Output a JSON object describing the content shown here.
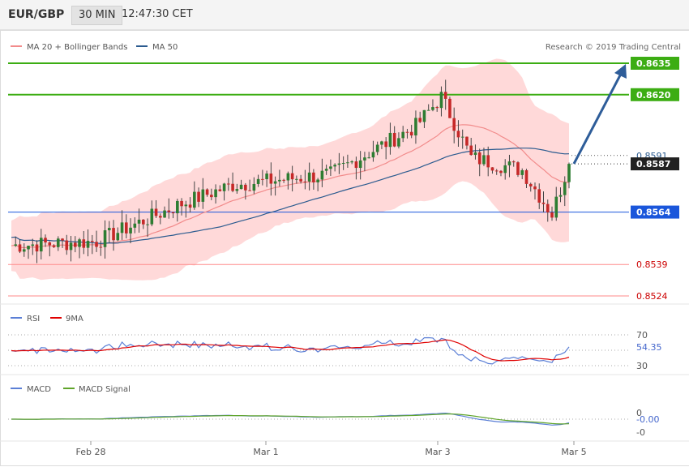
{
  "header": {
    "symbol": "EUR/GBP",
    "timeframe": "30 MIN",
    "time": "12:47:30 CET"
  },
  "legend": {
    "ma20_label": "MA 20 + Bollinger Bands",
    "ma50_label": "MA 50",
    "credit": "Research © 2019 Trading Central"
  },
  "colors": {
    "up": "#2e7d32",
    "down": "#c62828",
    "band": "#ffd2d2",
    "ma20": "#f28b8b",
    "ma50": "#2b5b8f",
    "target": "#3cad13",
    "support": "#1a56db",
    "resist": "#ff8a8a",
    "arrow": "#2e5d99",
    "rsi": "#5b7fd6",
    "rsi_ma": "#e00000",
    "macd": "#5b7fd6",
    "macd_signal": "#5fa42a"
  },
  "price_levels": [
    {
      "value": "0.8635",
      "kind": "target"
    },
    {
      "value": "0.8620",
      "kind": "target"
    },
    {
      "value": "0.8591",
      "kind": "text"
    },
    {
      "value": "0.8587",
      "kind": "last"
    },
    {
      "value": "0.8564",
      "kind": "pivot"
    },
    {
      "value": "0.8539",
      "kind": "support"
    },
    {
      "value": "0.8524",
      "kind": "support"
    }
  ],
  "rsi_panel": {
    "label": "RSI",
    "ma_label": "9MA",
    "level_high": "70",
    "level_low": "30",
    "value": "54.35"
  },
  "macd_panel": {
    "label": "MACD",
    "signal_label": "MACD Signal",
    "level_pos": "0",
    "level_neg": "-0",
    "value": "-0.00"
  },
  "x_axis": {
    "ticks": [
      "Feb 28",
      "Mar 1",
      "Mar 3",
      "Mar 5"
    ]
  },
  "chart_data": [
    {
      "type": "candlestick",
      "title": "EUR/GBP",
      "ylim": [
        0.852,
        0.8642
      ],
      "x": [
        "Feb 28",
        "Mar 1",
        "Mar 3",
        "Mar 5"
      ],
      "series": [
        {
          "name": "MA 20 + Bollinger Bands"
        },
        {
          "name": "MA 50"
        }
      ],
      "key_points": [
        {
          "x": "start",
          "y": 0.8548
        },
        {
          "x": "Feb 28",
          "y": 0.855
        },
        {
          "x": "Feb 28 late",
          "y": 0.8568
        },
        {
          "x": "Mar 1",
          "y": 0.8577
        },
        {
          "x": "Mar 1 late",
          "y": 0.8582
        },
        {
          "x": "Mar 2",
          "y": 0.8605
        },
        {
          "x": "Mar 3 peak",
          "y": 0.8619
        },
        {
          "x": "Mar 3",
          "y": 0.859
        },
        {
          "x": "Mar 4",
          "y": 0.8584
        },
        {
          "x": "Mar 5 low",
          "y": 0.8563
        },
        {
          "x": "Mar 5 last",
          "y": 0.8587
        }
      ],
      "projection": {
        "from": 0.8587,
        "to": 0.8635
      },
      "grid": false
    },
    {
      "type": "line",
      "title": "RSI",
      "ylim": [
        0,
        100
      ],
      "series": [
        {
          "name": "RSI"
        },
        {
          "name": "9MA"
        }
      ],
      "last_value": 54.35
    },
    {
      "type": "line",
      "title": "MACD",
      "series": [
        {
          "name": "MACD"
        },
        {
          "name": "MACD Signal"
        }
      ],
      "last_value": -0.0
    }
  ]
}
